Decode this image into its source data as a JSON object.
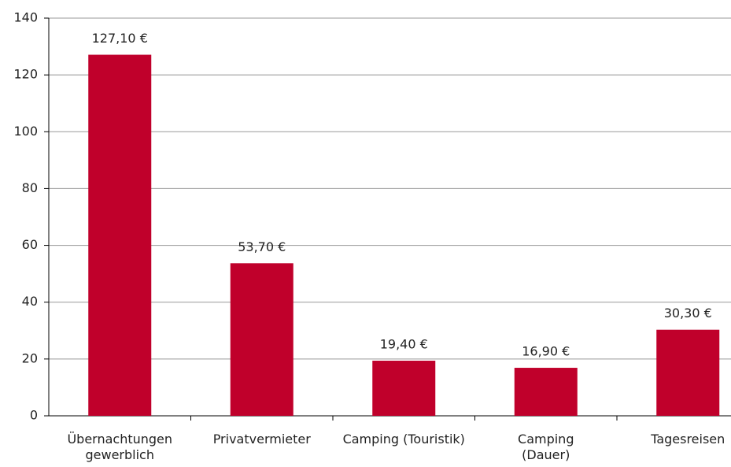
{
  "chart_data": {
    "type": "bar",
    "categories": [
      "Übernachtungen\ngewerblich",
      "Privatvermieter",
      "Camping (Touristik)",
      "Camping\n(Dauer)",
      "Tagesreisen"
    ],
    "values": [
      127.1,
      53.7,
      19.4,
      16.9,
      30.3
    ],
    "value_labels": [
      "127,10 €",
      "53,70 €",
      "19,40 €",
      "16,90 €",
      "30,30 €"
    ],
    "color": "#c0002b",
    "ylim": [
      0,
      140
    ],
    "yticks": [
      0,
      20,
      40,
      60,
      80,
      100,
      120,
      140
    ],
    "grid": true
  }
}
